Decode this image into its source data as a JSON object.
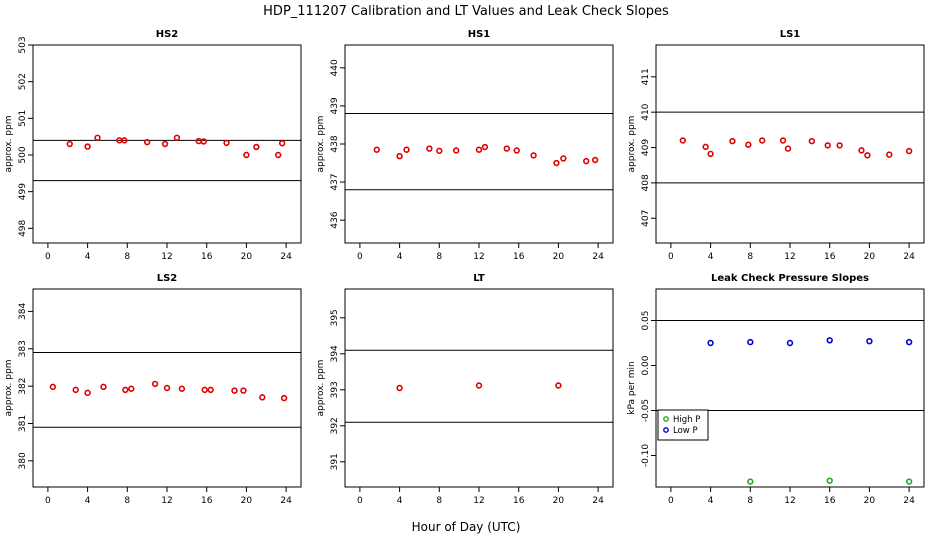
{
  "figure": {
    "title": "HDP_111207  Calibration and LT Values and Leak Check Slopes",
    "xlabel": "Hour of Day (UTC)"
  },
  "chart_data": [
    {
      "type": "scatter",
      "title": "HS2",
      "ylabel": "approx. ppm",
      "xlim": [
        -1.5,
        25.5
      ],
      "ylim": [
        497.6,
        503
      ],
      "xticks": [
        "0",
        "4",
        "8",
        "12",
        "16",
        "20",
        "24"
      ],
      "yticks": [
        "498",
        "499",
        "500",
        "501",
        "502",
        "503"
      ],
      "hlines": [
        500.4,
        499.3
      ],
      "series": [
        {
          "marker": "circle",
          "color": "#dd0000",
          "x": [
            2.2,
            4.0,
            5.0,
            7.2,
            7.7,
            10.0,
            11.8,
            13.0,
            15.2,
            15.7,
            18.0,
            20.0,
            21.0,
            23.2,
            23.6
          ],
          "y": [
            500.3,
            500.23,
            500.47,
            500.4,
            500.4,
            500.35,
            500.3,
            500.47,
            500.38,
            500.37,
            500.33,
            500.0,
            500.22,
            500.0,
            500.32
          ]
        }
      ]
    },
    {
      "type": "scatter",
      "title": "HS1",
      "ylabel": "approx. ppm",
      "xlim": [
        -1.5,
        25.5
      ],
      "ylim": [
        435.4,
        440.6
      ],
      "xticks": [
        "0",
        "4",
        "8",
        "12",
        "16",
        "20",
        "24"
      ],
      "yticks": [
        "436",
        "437",
        "438",
        "439",
        "440"
      ],
      "hlines": [
        438.8,
        436.8
      ],
      "series": [
        {
          "marker": "circle",
          "color": "#dd0000",
          "x": [
            1.7,
            4.0,
            4.7,
            7.0,
            8.0,
            9.7,
            12.0,
            12.6,
            14.8,
            15.8,
            17.5,
            19.8,
            20.5,
            22.8,
            23.7
          ],
          "y": [
            437.85,
            437.68,
            437.85,
            437.88,
            437.82,
            437.83,
            437.85,
            437.92,
            437.88,
            437.83,
            437.7,
            437.5,
            437.62,
            437.55,
            437.58
          ]
        }
      ]
    },
    {
      "type": "scatter",
      "title": "LS1",
      "ylabel": "approx. ppm",
      "xlim": [
        -1.5,
        25.5
      ],
      "ylim": [
        406.3,
        411.9
      ],
      "xticks": [
        "0",
        "4",
        "8",
        "12",
        "16",
        "20",
        "24"
      ],
      "yticks": [
        "407",
        "408",
        "409",
        "410",
        "411"
      ],
      "hlines": [
        410.0,
        408.0
      ],
      "series": [
        {
          "marker": "circle",
          "color": "#dd0000",
          "x": [
            1.2,
            3.5,
            4.0,
            6.2,
            7.8,
            9.2,
            11.3,
            11.8,
            14.2,
            15.8,
            17.0,
            19.2,
            19.8,
            22.0,
            24.0
          ],
          "y": [
            409.2,
            409.02,
            408.82,
            409.18,
            409.08,
            409.2,
            409.2,
            408.97,
            409.18,
            409.06,
            409.06,
            408.92,
            408.78,
            408.8,
            408.9
          ]
        }
      ]
    },
    {
      "type": "scatter",
      "title": "LS2",
      "ylabel": "approx. ppm",
      "xlim": [
        -1.5,
        25.5
      ],
      "ylim": [
        379.3,
        384.6
      ],
      "xticks": [
        "0",
        "4",
        "8",
        "12",
        "16",
        "20",
        "24"
      ],
      "yticks": [
        "380",
        "381",
        "382",
        "383",
        "384"
      ],
      "hlines": [
        382.9,
        380.9
      ],
      "series": [
        {
          "marker": "circle",
          "color": "#dd0000",
          "x": [
            0.5,
            2.8,
            4.0,
            5.6,
            7.8,
            8.4,
            10.8,
            12.0,
            13.5,
            15.8,
            16.4,
            18.8,
            19.7,
            21.6,
            23.8
          ],
          "y": [
            381.98,
            381.9,
            381.82,
            381.98,
            381.9,
            381.93,
            382.06,
            381.95,
            381.93,
            381.9,
            381.9,
            381.88,
            381.88,
            381.7,
            381.68
          ]
        }
      ]
    },
    {
      "type": "scatter",
      "title": "LT",
      "ylabel": "approx. ppm",
      "xlim": [
        -1.5,
        25.5
      ],
      "ylim": [
        390.3,
        395.8
      ],
      "xticks": [
        "0",
        "4",
        "8",
        "12",
        "16",
        "20",
        "24"
      ],
      "yticks": [
        "391",
        "392",
        "393",
        "394",
        "395"
      ],
      "hlines": [
        394.1,
        392.1
      ],
      "series": [
        {
          "marker": "circle",
          "color": "#dd0000",
          "x": [
            4.0,
            12.0,
            20.0
          ],
          "y": [
            393.05,
            393.12,
            393.12
          ]
        }
      ]
    },
    {
      "type": "scatter",
      "title": "Leak Check Pressure Slopes",
      "ylabel": "kPa per min",
      "xlim": [
        -1.5,
        25.5
      ],
      "ylim": [
        -0.135,
        0.085
      ],
      "xticks": [
        "0",
        "4",
        "8",
        "12",
        "16",
        "20",
        "24"
      ],
      "yticks": [
        "-0.10",
        "-0.05",
        "0.00",
        "0.05"
      ],
      "hlines": [
        0.05,
        -0.05
      ],
      "legend": "middle-left",
      "series": [
        {
          "name": "High P",
          "marker": "circle",
          "color": "#22aa22",
          "x": [
            8.0,
            16.0,
            24.0
          ],
          "y": [
            -0.129,
            -0.128,
            -0.129
          ]
        },
        {
          "name": "Low P",
          "marker": "circle",
          "color": "#0000cc",
          "x": [
            4.0,
            8.0,
            12.0,
            16.0,
            20.0,
            24.0
          ],
          "y": [
            0.025,
            0.026,
            0.025,
            0.028,
            0.027,
            0.026
          ]
        }
      ]
    }
  ]
}
